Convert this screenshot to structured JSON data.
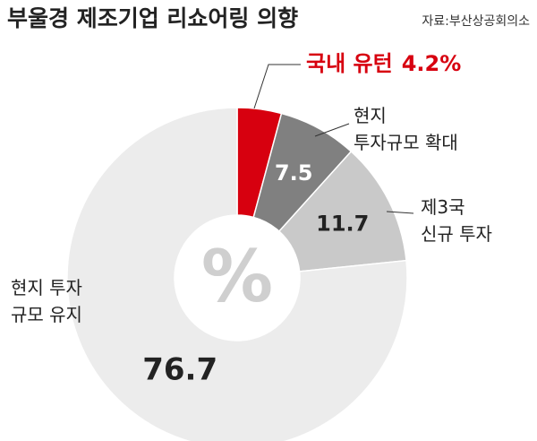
{
  "chart_data": {
    "type": "donut",
    "title": "부울경 제조기업 리쇼어링 의향",
    "source": "자료:부산상공회의소",
    "center_label": "%",
    "categories": [
      "국내 유턴",
      "현지\n투자규모 확대",
      "제3국\n신규 투자",
      "현지 투자\n규모 유지"
    ],
    "values": [
      4.2,
      7.5,
      11.7,
      76.7
    ],
    "value_labels": [
      "4.2%",
      "7.5",
      "11.7",
      "76.7"
    ],
    "colors": [
      "#d7000f",
      "#808080",
      "#c9c9c9",
      "#ececec"
    ]
  }
}
